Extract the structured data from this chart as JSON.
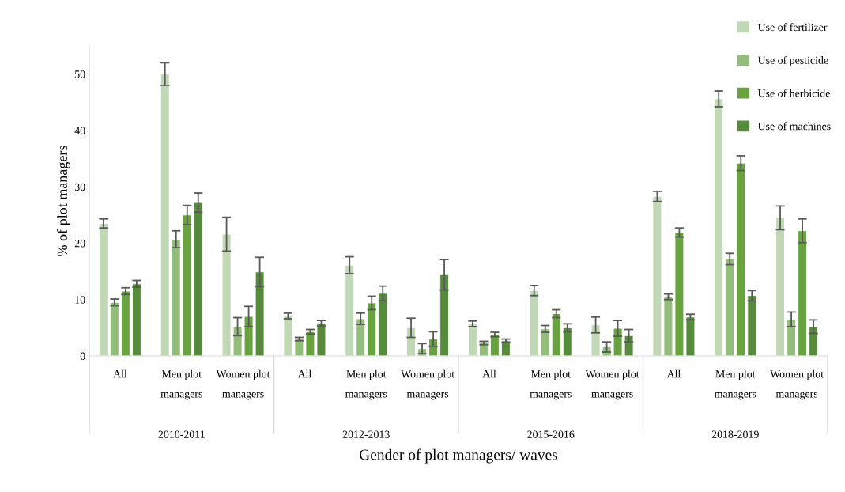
{
  "chart_data": {
    "type": "bar",
    "ylabel": "% of plot managers",
    "xlabel": "Gender of plot managers/ waves",
    "categories": [
      "All",
      "Men plot managers",
      "Women plot managers",
      "All",
      "Men plot managers",
      "Women plot managers",
      "All",
      "Men plot managers",
      "Women plot managers",
      "All",
      "Men plot managers",
      "Women plot managers"
    ],
    "annotations": [
      "2010-2011",
      "2012-2013",
      "2015-2016",
      "2018-2019"
    ],
    "ylim": [
      0,
      55
    ],
    "yticks": [
      0,
      10,
      20,
      30,
      40,
      50
    ],
    "grid": false,
    "legend": "top right",
    "series": [
      {
        "name": "Use of fertilizer",
        "color": "#c0d8b5",
        "values": [
          23.5,
          50,
          21.6,
          7.1,
          16.1,
          5.0,
          5.7,
          11.6,
          5.5,
          28.3,
          45.6,
          24.5
        ],
        "errors": [
          0.8,
          2,
          3,
          0.5,
          1.5,
          1.7,
          0.5,
          0.9,
          1.4,
          0.9,
          1.4,
          2.1
        ]
      },
      {
        "name": "Use of pesticide",
        "color": "#93bd7a",
        "values": [
          9.5,
          20.7,
          5.2,
          3.0,
          6.6,
          1.3,
          2.3,
          4.8,
          1.6,
          10.5,
          17.2,
          6.5
        ],
        "errors": [
          0.6,
          1.5,
          1.6,
          0.3,
          1,
          0.9,
          0.3,
          0.6,
          0.9,
          0.5,
          1,
          1.3
        ]
      },
      {
        "name": "Use of herbicide",
        "color": "#68a340",
        "values": [
          11.5,
          25,
          7,
          4.3,
          9.4,
          3.0,
          3.8,
          7.5,
          4.9,
          21.9,
          34.2,
          22.2
        ],
        "errors": [
          0.6,
          1.7,
          1.8,
          0.4,
          1.2,
          1.3,
          0.4,
          0.7,
          1.4,
          0.8,
          1.3,
          2.1
        ]
      },
      {
        "name": "Use of machines",
        "color": "#568b3c",
        "values": [
          12.8,
          27.2,
          14.9,
          5.8,
          11.1,
          14.4,
          2.7,
          5.0,
          3.6,
          6.9,
          10.7,
          5.2
        ],
        "errors": [
          0.6,
          1.7,
          2.6,
          0.5,
          1.3,
          2.7,
          0.3,
          0.7,
          1.1,
          0.5,
          0.9,
          1.2
        ]
      }
    ]
  }
}
